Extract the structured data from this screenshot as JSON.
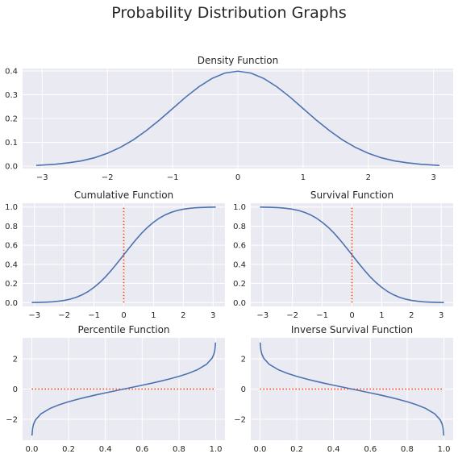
{
  "figure": {
    "suptitle": "Probability Distribution Graphs",
    "colors": {
      "background": "#eaeaf2",
      "grid": "#ffffff",
      "curve": "#4c72b0",
      "reference": "#ff3f0f",
      "text": "#262626"
    }
  },
  "chart_data": [
    {
      "id": "density",
      "type": "line",
      "title": "Density Function",
      "xlabel": "",
      "ylabel": "",
      "xlim": [
        -3.3,
        3.3
      ],
      "ylim": [
        -0.01,
        0.41
      ],
      "xticks": [
        -3,
        -2,
        -1,
        0,
        1,
        2,
        3
      ],
      "xtick_labels": [
        "−3",
        "−2",
        "−1",
        "0",
        "1",
        "2",
        "3"
      ],
      "yticks": [
        0.0,
        0.1,
        0.2,
        0.3,
        0.4
      ],
      "ytick_labels": [
        "0.0",
        "0.1",
        "0.2",
        "0.3",
        "0.4"
      ],
      "grid": true,
      "series": [
        {
          "x": [
            -3.09,
            -2.8,
            -2.6,
            -2.4,
            -2.2,
            -2.0,
            -1.8,
            -1.6,
            -1.4,
            -1.2,
            -1.0,
            -0.8,
            -0.6,
            -0.4,
            -0.2,
            0.0,
            0.2,
            0.4,
            0.6,
            0.8,
            1.0,
            1.2,
            1.4,
            1.6,
            1.8,
            2.0,
            2.2,
            2.4,
            2.6,
            2.8,
            3.09
          ],
          "y": [
            0.003,
            0.008,
            0.014,
            0.022,
            0.035,
            0.054,
            0.079,
            0.111,
            0.15,
            0.194,
            0.242,
            0.29,
            0.333,
            0.368,
            0.391,
            0.399,
            0.391,
            0.368,
            0.333,
            0.29,
            0.242,
            0.194,
            0.15,
            0.111,
            0.079,
            0.054,
            0.035,
            0.022,
            0.014,
            0.008,
            0.003
          ]
        }
      ]
    },
    {
      "id": "cdf",
      "type": "line",
      "title": "Cumulative Function",
      "xlabel": "",
      "ylabel": "",
      "xlim": [
        -3.4,
        3.4
      ],
      "ylim": [
        -0.04,
        1.04
      ],
      "xticks": [
        -3,
        -2,
        -1,
        0,
        1,
        2,
        3
      ],
      "xtick_labels": [
        "−3",
        "−2",
        "−1",
        "0",
        "1",
        "2",
        "3"
      ],
      "yticks": [
        0.0,
        0.2,
        0.4,
        0.6,
        0.8,
        1.0
      ],
      "ytick_labels": [
        "0.0",
        "0.2",
        "0.4",
        "0.6",
        "0.8",
        "1.0"
      ],
      "grid": true,
      "series": [
        {
          "x": [
            -3.09,
            -2.8,
            -2.6,
            -2.4,
            -2.2,
            -2.0,
            -1.8,
            -1.6,
            -1.4,
            -1.2,
            -1.0,
            -0.8,
            -0.6,
            -0.4,
            -0.2,
            0.0,
            0.2,
            0.4,
            0.6,
            0.8,
            1.0,
            1.2,
            1.4,
            1.6,
            1.8,
            2.0,
            2.2,
            2.4,
            2.6,
            2.8,
            3.09
          ],
          "y": [
            0.001,
            0.003,
            0.005,
            0.008,
            0.014,
            0.023,
            0.036,
            0.055,
            0.081,
            0.115,
            0.159,
            0.212,
            0.274,
            0.345,
            0.421,
            0.5,
            0.579,
            0.655,
            0.726,
            0.788,
            0.841,
            0.885,
            0.919,
            0.945,
            0.964,
            0.977,
            0.986,
            0.992,
            0.995,
            0.997,
            0.999
          ]
        }
      ],
      "reference_line": {
        "orientation": "vertical",
        "value": 0,
        "range": [
          0,
          1
        ]
      }
    },
    {
      "id": "survival",
      "type": "line",
      "title": "Survival Function",
      "xlabel": "",
      "ylabel": "",
      "xlim": [
        -3.4,
        3.4
      ],
      "ylim": [
        -0.04,
        1.04
      ],
      "xticks": [
        -3,
        -2,
        -1,
        0,
        1,
        2,
        3
      ],
      "xtick_labels": [
        "−3",
        "−2",
        "−1",
        "0",
        "1",
        "2",
        "3"
      ],
      "yticks": [
        0.0,
        0.2,
        0.4,
        0.6,
        0.8,
        1.0
      ],
      "ytick_labels": [
        "0.0",
        "0.2",
        "0.4",
        "0.6",
        "0.8",
        "1.0"
      ],
      "grid": true,
      "series": [
        {
          "x": [
            -3.09,
            -2.8,
            -2.6,
            -2.4,
            -2.2,
            -2.0,
            -1.8,
            -1.6,
            -1.4,
            -1.2,
            -1.0,
            -0.8,
            -0.6,
            -0.4,
            -0.2,
            0.0,
            0.2,
            0.4,
            0.6,
            0.8,
            1.0,
            1.2,
            1.4,
            1.6,
            1.8,
            2.0,
            2.2,
            2.4,
            2.6,
            2.8,
            3.09
          ],
          "y": [
            0.999,
            0.997,
            0.995,
            0.992,
            0.986,
            0.977,
            0.964,
            0.945,
            0.919,
            0.885,
            0.841,
            0.788,
            0.726,
            0.655,
            0.579,
            0.5,
            0.421,
            0.345,
            0.274,
            0.212,
            0.159,
            0.115,
            0.081,
            0.055,
            0.036,
            0.023,
            0.014,
            0.008,
            0.005,
            0.003,
            0.001
          ]
        }
      ],
      "reference_line": {
        "orientation": "vertical",
        "value": 0,
        "range": [
          0,
          1
        ]
      }
    },
    {
      "id": "percentile",
      "type": "line",
      "title": "Percentile Function",
      "xlabel": "",
      "ylabel": "",
      "xlim": [
        -0.05,
        1.05
      ],
      "ylim": [
        -3.4,
        3.4
      ],
      "xticks": [
        0.0,
        0.2,
        0.4,
        0.6,
        0.8,
        1.0
      ],
      "xtick_labels": [
        "0.0",
        "0.2",
        "0.4",
        "0.6",
        "0.8",
        "1.0"
      ],
      "yticks": [
        -2,
        0,
        2
      ],
      "ytick_labels": [
        "−2",
        "0",
        "2"
      ],
      "grid": true,
      "series": [
        {
          "x": [
            0.001,
            0.005,
            0.01,
            0.02,
            0.05,
            0.1,
            0.15,
            0.2,
            0.25,
            0.3,
            0.35,
            0.4,
            0.45,
            0.5,
            0.55,
            0.6,
            0.65,
            0.7,
            0.75,
            0.8,
            0.85,
            0.9,
            0.95,
            0.98,
            0.99,
            0.995,
            0.999
          ],
          "y": [
            -3.09,
            -2.576,
            -2.326,
            -2.054,
            -1.645,
            -1.282,
            -1.036,
            -0.842,
            -0.674,
            -0.524,
            -0.385,
            -0.253,
            -0.126,
            0.0,
            0.126,
            0.253,
            0.385,
            0.524,
            0.674,
            0.842,
            1.036,
            1.282,
            1.645,
            2.054,
            2.326,
            2.576,
            3.09
          ]
        }
      ],
      "reference_line": {
        "orientation": "horizontal",
        "value": 0,
        "range": [
          0,
          1
        ]
      }
    },
    {
      "id": "inverse_survival",
      "type": "line",
      "title": "Inverse Survival Function",
      "xlabel": "",
      "ylabel": "",
      "xlim": [
        -0.05,
        1.05
      ],
      "ylim": [
        -3.4,
        3.4
      ],
      "xticks": [
        0.0,
        0.2,
        0.4,
        0.6,
        0.8,
        1.0
      ],
      "xtick_labels": [
        "0.0",
        "0.2",
        "0.4",
        "0.6",
        "0.8",
        "1.0"
      ],
      "yticks": [
        -2,
        0,
        2
      ],
      "ytick_labels": [
        "−2",
        "0",
        "2"
      ],
      "grid": true,
      "series": [
        {
          "x": [
            0.001,
            0.005,
            0.01,
            0.02,
            0.05,
            0.1,
            0.15,
            0.2,
            0.25,
            0.3,
            0.35,
            0.4,
            0.45,
            0.5,
            0.55,
            0.6,
            0.65,
            0.7,
            0.75,
            0.8,
            0.85,
            0.9,
            0.95,
            0.98,
            0.99,
            0.995,
            0.999
          ],
          "y": [
            3.09,
            2.576,
            2.326,
            2.054,
            1.645,
            1.282,
            1.036,
            0.842,
            0.674,
            0.524,
            0.385,
            0.253,
            0.126,
            0.0,
            -0.126,
            -0.253,
            -0.385,
            -0.524,
            -0.674,
            -0.842,
            -1.036,
            -1.282,
            -1.645,
            -2.054,
            -2.326,
            -2.576,
            -3.09
          ]
        }
      ],
      "reference_line": {
        "orientation": "horizontal",
        "value": 0,
        "range": [
          0,
          1
        ]
      }
    }
  ]
}
